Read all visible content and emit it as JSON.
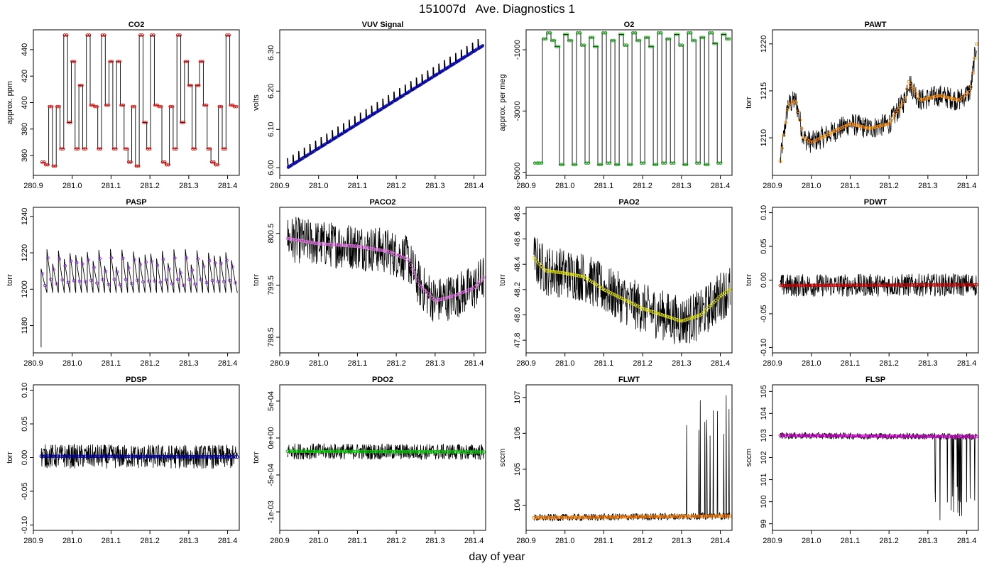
{
  "figure": {
    "title": "151007d   Ave. Diagnostics 1",
    "xlabel": "day of year"
  },
  "chart_data": [
    {
      "type": "line",
      "title": "CO2",
      "ylabel": "approx. ppm",
      "xlim": [
        280.9,
        281.43
      ],
      "ylim": [
        345,
        455
      ],
      "yticks": [
        {
          "v": 360,
          "l": "360"
        },
        {
          "v": 380,
          "l": "380"
        },
        {
          "v": 400,
          "l": "400"
        },
        {
          "v": 420,
          "l": "420"
        },
        {
          "v": 440,
          "l": "440"
        }
      ],
      "xticks": [
        {
          "v": 280.9,
          "l": "280.9"
        },
        {
          "v": 281.0,
          "l": "281.0"
        },
        {
          "v": 281.1,
          "l": "281.1"
        },
        {
          "v": 281.2,
          "l": "281.2"
        },
        {
          "v": 281.3,
          "l": "281.3"
        },
        {
          "v": 281.4,
          "l": "281.4"
        }
      ],
      "x_start": 280.92,
      "x_end": 281.425,
      "point_color": "#ff0000",
      "levels": [
        355,
        353,
        397,
        352,
        397,
        365,
        451,
        385,
        431,
        365,
        413,
        365,
        451,
        398,
        397,
        365,
        451,
        398,
        431,
        365,
        431,
        398,
        365,
        355,
        397,
        352,
        451,
        385,
        365,
        451,
        398,
        397,
        355,
        353,
        397,
        365,
        451,
        385,
        431,
        413,
        365,
        413,
        431,
        398,
        365,
        355,
        353,
        397,
        365,
        451,
        398,
        397
      ]
    },
    {
      "type": "line",
      "title": "VUV Signal",
      "ylabel": "volts",
      "xlim": [
        280.9,
        281.43
      ],
      "ylim": [
        5.98,
        6.36
      ],
      "yticks": [
        {
          "v": 6.0,
          "l": "6.00"
        },
        {
          "v": 6.1,
          "l": "6.10"
        },
        {
          "v": 6.2,
          "l": "6.20"
        },
        {
          "v": 6.3,
          "l": "6.30"
        }
      ],
      "xticks": [
        {
          "v": 280.9,
          "l": "280.9"
        },
        {
          "v": 281.0,
          "l": "281.0"
        },
        {
          "v": 281.1,
          "l": "281.1"
        },
        {
          "v": 281.2,
          "l": "281.2"
        },
        {
          "v": 281.3,
          "l": "281.3"
        },
        {
          "v": 281.4,
          "l": "281.4"
        }
      ],
      "x_start": 280.92,
      "x_end": 281.425,
      "y_start": 6.0,
      "y_end": 6.32,
      "spike": 0.025,
      "n_steps": 35,
      "point_color": "#0000cc"
    },
    {
      "type": "line",
      "title": "O2",
      "ylabel": "approx. per meg",
      "xlim": [
        280.9,
        281.43
      ],
      "ylim": [
        -5100,
        -350
      ],
      "yticks": [
        {
          "v": -5000,
          "l": "-5000"
        },
        {
          "v": -3000,
          "l": "-3000"
        },
        {
          "v": -1000,
          "l": "-1000"
        }
      ],
      "xticks": [
        {
          "v": 280.9,
          "l": "280.9"
        },
        {
          "v": 281.0,
          "l": "281.0"
        },
        {
          "v": 281.1,
          "l": "281.1"
        },
        {
          "v": 281.2,
          "l": "281.2"
        },
        {
          "v": 281.3,
          "l": "281.3"
        },
        {
          "v": 281.4,
          "l": "281.4"
        }
      ],
      "x_start": 280.92,
      "x_end": 281.425,
      "point_color": "#00aa00",
      "levels": [
        -4700,
        -4700,
        -650,
        -450,
        -700,
        -900,
        -4750,
        -500,
        -700,
        -4750,
        -450,
        -850,
        -4700,
        -600,
        -900,
        -4750,
        -450,
        -4700,
        -700,
        -4750,
        -500,
        -850,
        -4750,
        -450,
        -700,
        -4700,
        -600,
        -900,
        -4750,
        -450,
        -4700,
        -650,
        -4700,
        -500,
        -850,
        -4750,
        -450,
        -700,
        -4700,
        -600,
        -4750,
        -450,
        -800,
        -4700,
        -500,
        -650
      ]
    },
    {
      "type": "line",
      "title": "PAWT",
      "ylabel": "torr",
      "xlim": [
        280.9,
        281.43
      ],
      "ylim": [
        1206,
        1221.5
      ],
      "yticks": [
        {
          "v": 1210,
          "l": "1210"
        },
        {
          "v": 1215,
          "l": "1215"
        },
        {
          "v": 1220,
          "l": "1220"
        }
      ],
      "xticks": [
        {
          "v": 280.9,
          "l": "280.9"
        },
        {
          "v": 281.0,
          "l": "281.0"
        },
        {
          "v": 281.1,
          "l": "281.1"
        },
        {
          "v": 281.2,
          "l": "281.2"
        },
        {
          "v": 281.3,
          "l": "281.3"
        },
        {
          "v": 281.4,
          "l": "281.4"
        }
      ],
      "x_start": 280.92,
      "x_end": 281.425,
      "noise": 1.2,
      "point_color": "#ff8c00",
      "trend": [
        [
          280.92,
          1207.5
        ],
        [
          280.94,
          1213.5
        ],
        [
          280.96,
          1214
        ],
        [
          280.98,
          1210
        ],
        [
          281.0,
          1209.5
        ],
        [
          281.05,
          1210.5
        ],
        [
          281.1,
          1211.5
        ],
        [
          281.15,
          1211
        ],
        [
          281.2,
          1211.5
        ],
        [
          281.24,
          1214
        ],
        [
          281.25,
          1216
        ],
        [
          281.28,
          1214
        ],
        [
          281.33,
          1214.5
        ],
        [
          281.38,
          1214
        ],
        [
          281.41,
          1215
        ],
        [
          281.425,
          1220
        ]
      ]
    },
    {
      "type": "line",
      "title": "PASP",
      "ylabel": "torr",
      "xlim": [
        280.9,
        281.43
      ],
      "ylim": [
        1165,
        1245
      ],
      "yticks": [
        {
          "v": 1180,
          "l": "1180"
        },
        {
          "v": 1200,
          "l": "1200"
        },
        {
          "v": 1220,
          "l": "1220"
        },
        {
          "v": 1240,
          "l": "1240"
        }
      ],
      "xticks": [
        {
          "v": 280.9,
          "l": "280.9"
        },
        {
          "v": 281.0,
          "l": "281.0"
        },
        {
          "v": 281.1,
          "l": "281.1"
        },
        {
          "v": 281.2,
          "l": "281.2"
        },
        {
          "v": 281.3,
          "l": "281.3"
        },
        {
          "v": 281.4,
          "l": "281.4"
        }
      ],
      "x_start": 280.92,
      "x_end": 281.425,
      "base": 1198,
      "amp": 24,
      "n_cycles": 34,
      "point_color": "#8a2be2"
    },
    {
      "type": "line",
      "title": "PACO2",
      "ylabel": "torr",
      "xlim": [
        280.9,
        281.43
      ],
      "ylim": [
        798.2,
        801.0
      ],
      "yticks": [
        {
          "v": 798.5,
          "l": "798.5"
        },
        {
          "v": 799.5,
          "l": "799.5"
        },
        {
          "v": 800.5,
          "l": "800.5"
        }
      ],
      "xticks": [
        {
          "v": 280.9,
          "l": "280.9"
        },
        {
          "v": 281.0,
          "l": "281.0"
        },
        {
          "v": 281.1,
          "l": "281.1"
        },
        {
          "v": 281.2,
          "l": "281.2"
        },
        {
          "v": 281.3,
          "l": "281.3"
        },
        {
          "v": 281.4,
          "l": "281.4"
        }
      ],
      "x_start": 280.92,
      "x_end": 281.425,
      "noise": 0.45,
      "point_color": "#e070e0",
      "trend": [
        [
          280.92,
          800.4
        ],
        [
          281.0,
          800.3
        ],
        [
          281.1,
          800.25
        ],
        [
          281.18,
          800.15
        ],
        [
          281.23,
          800.0
        ],
        [
          281.26,
          799.5
        ],
        [
          281.3,
          799.2
        ],
        [
          281.35,
          799.3
        ],
        [
          281.4,
          799.45
        ],
        [
          281.425,
          799.65
        ]
      ]
    },
    {
      "type": "line",
      "title": "PAO2",
      "ylabel": "torr",
      "xlim": [
        280.9,
        281.43
      ],
      "ylim": [
        47.7,
        48.85
      ],
      "yticks": [
        {
          "v": 47.8,
          "l": "47.8"
        },
        {
          "v": 48.0,
          "l": "48.0"
        },
        {
          "v": 48.2,
          "l": "48.2"
        },
        {
          "v": 48.4,
          "l": "48.4"
        },
        {
          "v": 48.6,
          "l": "48.6"
        },
        {
          "v": 48.8,
          "l": "48.8"
        }
      ],
      "xticks": [
        {
          "v": 280.9,
          "l": "280.9"
        },
        {
          "v": 281.0,
          "l": "281.0"
        },
        {
          "v": 281.1,
          "l": "281.1"
        },
        {
          "v": 281.2,
          "l": "281.2"
        },
        {
          "v": 281.3,
          "l": "281.3"
        },
        {
          "v": 281.4,
          "l": "281.4"
        }
      ],
      "x_start": 280.92,
      "x_end": 281.425,
      "noise": 0.2,
      "point_color": "#e0e000",
      "trend": [
        [
          280.92,
          48.45
        ],
        [
          280.95,
          48.35
        ],
        [
          281.0,
          48.33
        ],
        [
          281.05,
          48.3
        ],
        [
          281.1,
          48.2
        ],
        [
          281.2,
          48.05
        ],
        [
          281.25,
          48.0
        ],
        [
          281.3,
          47.95
        ],
        [
          281.35,
          48.0
        ],
        [
          281.4,
          48.15
        ],
        [
          281.425,
          48.2
        ]
      ]
    },
    {
      "type": "line",
      "title": "PDWT",
      "ylabel": "torr",
      "xlim": [
        280.9,
        281.43
      ],
      "ylim": [
        -0.108,
        0.108
      ],
      "yticks": [
        {
          "v": -0.1,
          "l": "-0.10"
        },
        {
          "v": -0.05,
          "l": "-0.05"
        },
        {
          "v": 0.0,
          "l": "0.00"
        },
        {
          "v": 0.05,
          "l": "0.05"
        },
        {
          "v": 0.1,
          "l": "0.10"
        }
      ],
      "xticks": [
        {
          "v": 280.9,
          "l": "280.9"
        },
        {
          "v": 281.0,
          "l": "281.0"
        },
        {
          "v": 281.1,
          "l": "281.1"
        },
        {
          "v": 281.2,
          "l": "281.2"
        },
        {
          "v": 281.3,
          "l": "281.3"
        },
        {
          "v": 281.4,
          "l": "281.4"
        }
      ],
      "x_start": 280.92,
      "x_end": 281.425,
      "noise": 0.017,
      "point_color": "#cc0000",
      "trend": [
        [
          280.92,
          -0.008
        ],
        [
          281.425,
          -0.007
        ]
      ]
    },
    {
      "type": "line",
      "title": "PDSP",
      "ylabel": "torr",
      "xlim": [
        280.9,
        281.43
      ],
      "ylim": [
        -0.108,
        0.108
      ],
      "yticks": [
        {
          "v": -0.1,
          "l": "-0.10"
        },
        {
          "v": -0.05,
          "l": "-0.05"
        },
        {
          "v": 0.0,
          "l": "0.00"
        },
        {
          "v": 0.05,
          "l": "0.05"
        },
        {
          "v": 0.1,
          "l": "0.10"
        }
      ],
      "xticks": [
        {
          "v": 280.9,
          "l": "280.9"
        },
        {
          "v": 281.0,
          "l": "281.0"
        },
        {
          "v": 281.1,
          "l": "281.1"
        },
        {
          "v": 281.2,
          "l": "281.2"
        },
        {
          "v": 281.3,
          "l": "281.3"
        },
        {
          "v": 281.4,
          "l": "281.4"
        }
      ],
      "x_start": 280.92,
      "x_end": 281.425,
      "noise": 0.018,
      "point_color": "#0000aa",
      "trend": [
        [
          280.92,
          0.002
        ],
        [
          281.425,
          0.001
        ]
      ]
    },
    {
      "type": "line",
      "title": "PDO2",
      "ylabel": "torr",
      "xlim": [
        280.9,
        281.43
      ],
      "ylim": [
        -0.00125,
        0.00072
      ],
      "yticks": [
        {
          "v": -0.001,
          "l": "-1e-03"
        },
        {
          "v": -0.0005,
          "l": "-5e-04"
        },
        {
          "v": 0.0,
          "l": "0e+00"
        },
        {
          "v": 0.0005,
          "l": "5e-04"
        }
      ],
      "xticks": [
        {
          "v": 280.9,
          "l": "280.9"
        },
        {
          "v": 281.0,
          "l": "281.0"
        },
        {
          "v": 281.1,
          "l": "281.1"
        },
        {
          "v": 281.2,
          "l": "281.2"
        },
        {
          "v": 281.3,
          "l": "281.3"
        },
        {
          "v": 281.4,
          "l": "281.4"
        }
      ],
      "x_start": 280.92,
      "x_end": 281.425,
      "noise": 0.00011,
      "point_color": "#00cc00",
      "trend": [
        [
          280.92,
          -0.00018
        ],
        [
          281.425,
          -0.00019
        ]
      ]
    },
    {
      "type": "line",
      "title": "FLWT",
      "ylabel": "sccm",
      "xlim": [
        280.9,
        281.43
      ],
      "ylim": [
        103.3,
        107.35
      ],
      "yticks": [
        {
          "v": 104,
          "l": "104"
        },
        {
          "v": 105,
          "l": "105"
        },
        {
          "v": 106,
          "l": "106"
        },
        {
          "v": 107,
          "l": "107"
        }
      ],
      "xticks": [
        {
          "v": 280.9,
          "l": "280.9"
        },
        {
          "v": 281.0,
          "l": "281.0"
        },
        {
          "v": 281.1,
          "l": "281.1"
        },
        {
          "v": 281.2,
          "l": "281.2"
        },
        {
          "v": 281.3,
          "l": "281.3"
        },
        {
          "v": 281.4,
          "l": "281.4"
        }
      ],
      "x_start": 280.92,
      "x_end": 281.425,
      "noise": 0.1,
      "point_color": "#ff7f00",
      "trend": [
        [
          280.92,
          103.65
        ],
        [
          281.425,
          103.7
        ]
      ],
      "spikes_from": 281.31,
      "spike_dir": 1,
      "spike_size": 3.4
    },
    {
      "type": "line",
      "title": "FLSP",
      "ylabel": "sccm",
      "xlim": [
        280.9,
        281.43
      ],
      "ylim": [
        98.7,
        105.3
      ],
      "yticks": [
        {
          "v": 99,
          "l": "99"
        },
        {
          "v": 100,
          "l": "100"
        },
        {
          "v": 101,
          "l": "101"
        },
        {
          "v": 102,
          "l": "102"
        },
        {
          "v": 103,
          "l": "103"
        },
        {
          "v": 104,
          "l": "104"
        },
        {
          "v": 105,
          "l": "105"
        }
      ],
      "xticks": [
        {
          "v": 280.9,
          "l": "280.9"
        },
        {
          "v": 281.0,
          "l": "281.0"
        },
        {
          "v": 281.1,
          "l": "281.1"
        },
        {
          "v": 281.2,
          "l": "281.2"
        },
        {
          "v": 281.3,
          "l": "281.3"
        },
        {
          "v": 281.4,
          "l": "281.4"
        }
      ],
      "x_start": 280.92,
      "x_end": 281.425,
      "noise": 0.15,
      "point_color": "#cc00cc",
      "trend": [
        [
          280.92,
          103.0
        ],
        [
          281.425,
          102.95
        ]
      ],
      "spikes_from": 281.31,
      "spike_dir": -1,
      "spike_size": 3.8
    }
  ]
}
